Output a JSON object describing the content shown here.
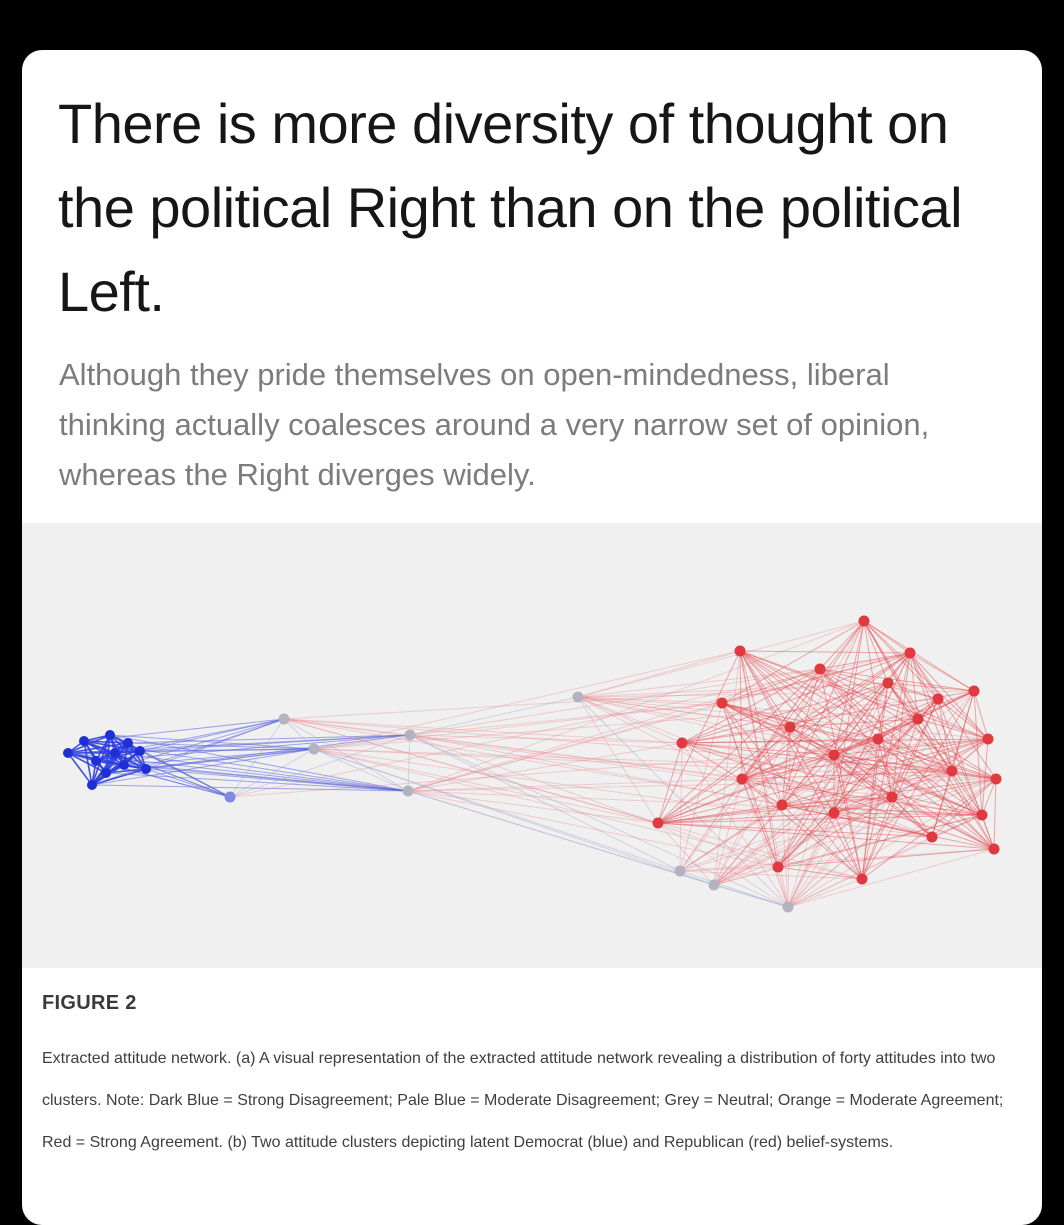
{
  "headline": "There is more diversity of thought on the political Right than on the political Left.",
  "subheadline": "Although they pride themselves on open-mindedness, liberal thinking actually coalesces around a very narrow set of opinion, whereas the Right diverges widely.",
  "figure": {
    "label": "FIGURE 2",
    "caption": "Extracted attitude network. (a) A visual representation of the extracted attitude network revealing a distribution of forty attitudes into two clusters. Note: Dark Blue = Strong Disagreement; Pale Blue = Moderate Disagreement; Grey = Neutral; Orange = Moderate Agreement; Red = Strong Agreement. (b) Two attitude clusters depicting latent Democrat (blue) and Republican (red) belief-systems.",
    "network": {
      "node_count": 40,
      "clusters": [
        {
          "name": "Democrat",
          "color": "#2233dd"
        },
        {
          "name": "Republican",
          "color": "#e0353b"
        }
      ],
      "colors": {
        "dark_blue": "#1f2fd6",
        "pale_blue": "#7f8ce0",
        "grey": "#b3b3c0",
        "red": "#df3a40"
      }
    }
  }
}
